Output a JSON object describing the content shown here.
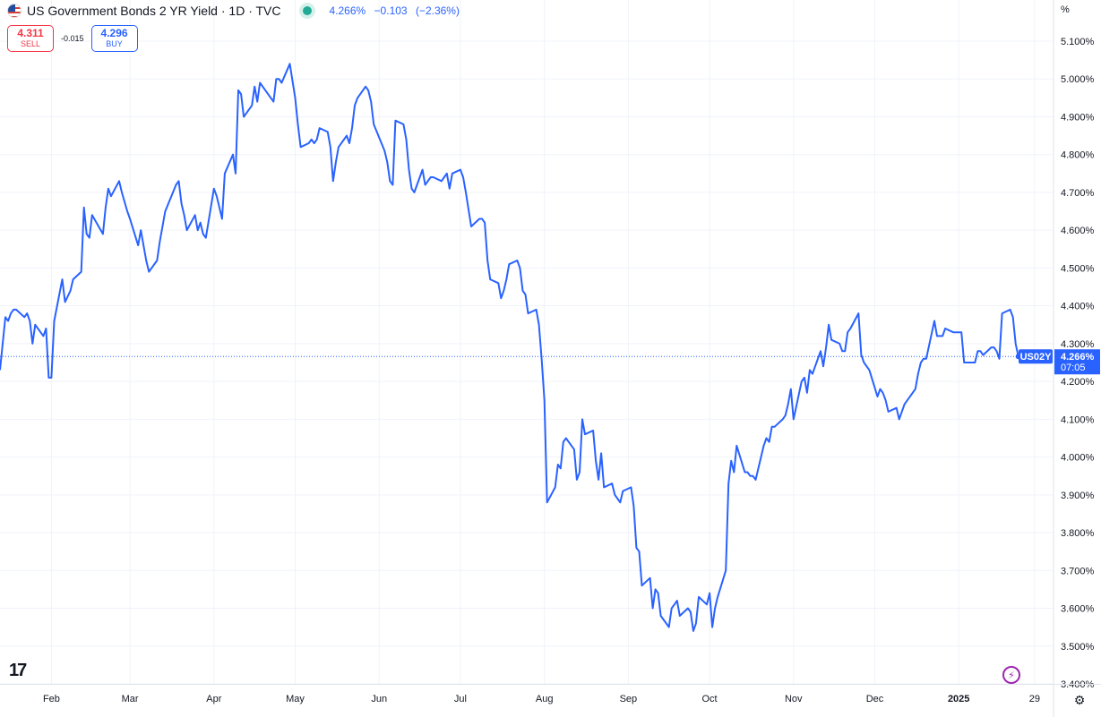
{
  "header": {
    "title": "US Government Bonds 2 YR Yield · 1D · TVC",
    "last": "4.266%",
    "change": "−0.103",
    "change_pct": "(−2.36%)"
  },
  "trade": {
    "sell_price": "4.311",
    "sell_label": "SELL",
    "spread": "-0.015",
    "buy_price": "4.296",
    "buy_label": "BUY"
  },
  "axis_unit": "%",
  "colors": {
    "line": "#2962ff",
    "grid": "#f0f3fa",
    "axis_text": "#131722",
    "badge_bg": "#2962ff",
    "sell": "#f23645"
  },
  "icons": [
    "us-flag-icon",
    "status-dot-icon",
    "tradingview-logo-icon",
    "flash-icon",
    "settings-icon"
  ],
  "chart_data": {
    "type": "line",
    "symbol": "US02Y",
    "badge_value": "4.266%",
    "badge_time": "07:05",
    "ylim": [
      3.4,
      5.1
    ],
    "y_ticks": [
      "3.400%",
      "3.500%",
      "3.600%",
      "3.700%",
      "3.800%",
      "3.900%",
      "4.000%",
      "4.100%",
      "4.200%",
      "4.300%",
      "4.400%",
      "4.500%",
      "4.600%",
      "4.700%",
      "4.800%",
      "4.900%",
      "5.000%",
      "5.100%"
    ],
    "y_tick_values": [
      3.4,
      3.5,
      3.6,
      3.7,
      3.8,
      3.9,
      4.0,
      4.1,
      4.2,
      4.3,
      4.4,
      4.5,
      4.6,
      4.7,
      4.8,
      4.9,
      5.0,
      5.1
    ],
    "x_ticks": [
      {
        "label": "Feb",
        "date": "2024-02-01"
      },
      {
        "label": "Mar",
        "date": "2024-03-01"
      },
      {
        "label": "Apr",
        "date": "2024-04-01"
      },
      {
        "label": "May",
        "date": "2024-05-01"
      },
      {
        "label": "Jun",
        "date": "2024-06-01"
      },
      {
        "label": "Jul",
        "date": "2024-07-01"
      },
      {
        "label": "Aug",
        "date": "2024-08-01"
      },
      {
        "label": "Sep",
        "date": "2024-09-01"
      },
      {
        "label": "Oct",
        "date": "2024-10-01"
      },
      {
        "label": "Nov",
        "date": "2024-11-01"
      },
      {
        "label": "Dec",
        "date": "2024-12-01"
      },
      {
        "label": "2025",
        "date": "2025-01-01"
      },
      {
        "label": "29",
        "date": "2025-01-29"
      }
    ],
    "x_range": [
      "2024-01-13",
      "2025-02-05"
    ],
    "last_value": 4.266,
    "series": [
      {
        "points": [
          [
            "2024-01-13",
            4.23
          ],
          [
            "2024-01-15",
            4.37
          ],
          [
            "2024-01-16",
            4.36
          ],
          [
            "2024-01-17",
            4.38
          ],
          [
            "2024-01-18",
            4.39
          ],
          [
            "2024-01-19",
            4.39
          ],
          [
            "2024-01-22",
            4.37
          ],
          [
            "2024-01-23",
            4.38
          ],
          [
            "2024-01-24",
            4.36
          ],
          [
            "2024-01-25",
            4.3
          ],
          [
            "2024-01-26",
            4.35
          ],
          [
            "2024-01-29",
            4.32
          ],
          [
            "2024-01-30",
            4.34
          ],
          [
            "2024-01-31",
            4.21
          ],
          [
            "2024-02-01",
            4.21
          ],
          [
            "2024-02-02",
            4.36
          ],
          [
            "2024-02-05",
            4.47
          ],
          [
            "2024-02-06",
            4.41
          ],
          [
            "2024-02-08",
            4.44
          ],
          [
            "2024-02-09",
            4.47
          ],
          [
            "2024-02-12",
            4.49
          ],
          [
            "2024-02-13",
            4.66
          ],
          [
            "2024-02-14",
            4.59
          ],
          [
            "2024-02-15",
            4.58
          ],
          [
            "2024-02-16",
            4.64
          ],
          [
            "2024-02-20",
            4.59
          ],
          [
            "2024-02-21",
            4.66
          ],
          [
            "2024-02-22",
            4.71
          ],
          [
            "2024-02-23",
            4.69
          ],
          [
            "2024-02-26",
            4.73
          ],
          [
            "2024-02-27",
            4.7
          ],
          [
            "2024-02-29",
            4.65
          ],
          [
            "2024-03-01",
            4.63
          ],
          [
            "2024-03-04",
            4.56
          ],
          [
            "2024-03-05",
            4.6
          ],
          [
            "2024-03-06",
            4.56
          ],
          [
            "2024-03-07",
            4.52
          ],
          [
            "2024-03-08",
            4.49
          ],
          [
            "2024-03-11",
            4.52
          ],
          [
            "2024-03-12",
            4.57
          ],
          [
            "2024-03-13",
            4.61
          ],
          [
            "2024-03-14",
            4.65
          ],
          [
            "2024-03-18",
            4.72
          ],
          [
            "2024-03-19",
            4.73
          ],
          [
            "2024-03-20",
            4.67
          ],
          [
            "2024-03-21",
            4.64
          ],
          [
            "2024-03-22",
            4.6
          ],
          [
            "2024-03-25",
            4.64
          ],
          [
            "2024-03-26",
            4.6
          ],
          [
            "2024-03-27",
            4.62
          ],
          [
            "2024-03-28",
            4.59
          ],
          [
            "2024-03-29",
            4.58
          ],
          [
            "2024-04-01",
            4.71
          ],
          [
            "2024-04-02",
            4.69
          ],
          [
            "2024-04-03",
            4.66
          ],
          [
            "2024-04-04",
            4.63
          ],
          [
            "2024-04-05",
            4.75
          ],
          [
            "2024-04-08",
            4.8
          ],
          [
            "2024-04-09",
            4.75
          ],
          [
            "2024-04-10",
            4.97
          ],
          [
            "2024-04-11",
            4.96
          ],
          [
            "2024-04-12",
            4.9
          ],
          [
            "2024-04-15",
            4.93
          ],
          [
            "2024-04-16",
            4.98
          ],
          [
            "2024-04-17",
            4.94
          ],
          [
            "2024-04-18",
            4.99
          ],
          [
            "2024-04-19",
            4.98
          ],
          [
            "2024-04-22",
            4.95
          ],
          [
            "2024-04-23",
            4.94
          ],
          [
            "2024-04-24",
            5.0
          ],
          [
            "2024-04-25",
            5.0
          ],
          [
            "2024-04-26",
            4.99
          ],
          [
            "2024-04-29",
            5.04
          ],
          [
            "2024-05-01",
            4.95
          ],
          [
            "2024-05-02",
            4.88
          ],
          [
            "2024-05-03",
            4.82
          ],
          [
            "2024-05-06",
            4.83
          ],
          [
            "2024-05-07",
            4.84
          ],
          [
            "2024-05-08",
            4.83
          ],
          [
            "2024-05-09",
            4.84
          ],
          [
            "2024-05-10",
            4.87
          ],
          [
            "2024-05-13",
            4.86
          ],
          [
            "2024-05-14",
            4.82
          ],
          [
            "2024-05-15",
            4.73
          ],
          [
            "2024-05-16",
            4.78
          ],
          [
            "2024-05-17",
            4.82
          ],
          [
            "2024-05-20",
            4.85
          ],
          [
            "2024-05-21",
            4.83
          ],
          [
            "2024-05-22",
            4.87
          ],
          [
            "2024-05-23",
            4.93
          ],
          [
            "2024-05-24",
            4.95
          ],
          [
            "2024-05-27",
            4.98
          ],
          [
            "2024-05-28",
            4.97
          ],
          [
            "2024-05-29",
            4.94
          ],
          [
            "2024-05-30",
            4.88
          ],
          [
            "2024-06-03",
            4.81
          ],
          [
            "2024-06-04",
            4.78
          ],
          [
            "2024-06-05",
            4.73
          ],
          [
            "2024-06-06",
            4.72
          ],
          [
            "2024-06-07",
            4.89
          ],
          [
            "2024-06-10",
            4.88
          ],
          [
            "2024-06-11",
            4.84
          ],
          [
            "2024-06-12",
            4.76
          ],
          [
            "2024-06-13",
            4.71
          ],
          [
            "2024-06-14",
            4.7
          ],
          [
            "2024-06-17",
            4.76
          ],
          [
            "2024-06-18",
            4.72
          ],
          [
            "2024-06-20",
            4.74
          ],
          [
            "2024-06-21",
            4.74
          ],
          [
            "2024-06-24",
            4.73
          ],
          [
            "2024-06-25",
            4.74
          ],
          [
            "2024-06-26",
            4.75
          ],
          [
            "2024-06-27",
            4.71
          ],
          [
            "2024-06-28",
            4.75
          ],
          [
            "2024-07-01",
            4.76
          ],
          [
            "2024-07-02",
            4.74
          ],
          [
            "2024-07-03",
            4.7
          ],
          [
            "2024-07-05",
            4.61
          ],
          [
            "2024-07-08",
            4.63
          ],
          [
            "2024-07-09",
            4.63
          ],
          [
            "2024-07-10",
            4.62
          ],
          [
            "2024-07-11",
            4.52
          ],
          [
            "2024-07-12",
            4.47
          ],
          [
            "2024-07-15",
            4.46
          ],
          [
            "2024-07-16",
            4.42
          ],
          [
            "2024-07-17",
            4.44
          ],
          [
            "2024-07-18",
            4.47
          ],
          [
            "2024-07-19",
            4.51
          ],
          [
            "2024-07-22",
            4.52
          ],
          [
            "2024-07-23",
            4.5
          ],
          [
            "2024-07-24",
            4.44
          ],
          [
            "2024-07-25",
            4.43
          ],
          [
            "2024-07-26",
            4.38
          ],
          [
            "2024-07-29",
            4.39
          ],
          [
            "2024-07-30",
            4.35
          ],
          [
            "2024-07-31",
            4.26
          ],
          [
            "2024-08-01",
            4.15
          ],
          [
            "2024-08-02",
            3.88
          ],
          [
            "2024-08-05",
            3.92
          ],
          [
            "2024-08-06",
            3.98
          ],
          [
            "2024-08-07",
            3.97
          ],
          [
            "2024-08-08",
            4.04
          ],
          [
            "2024-08-09",
            4.05
          ],
          [
            "2024-08-12",
            4.02
          ],
          [
            "2024-08-13",
            3.94
          ],
          [
            "2024-08-14",
            3.96
          ],
          [
            "2024-08-15",
            4.1
          ],
          [
            "2024-08-16",
            4.06
          ],
          [
            "2024-08-19",
            4.07
          ],
          [
            "2024-08-20",
            3.99
          ],
          [
            "2024-08-21",
            3.94
          ],
          [
            "2024-08-22",
            4.01
          ],
          [
            "2024-08-23",
            3.92
          ],
          [
            "2024-08-26",
            3.93
          ],
          [
            "2024-08-27",
            3.9
          ],
          [
            "2024-08-28",
            3.89
          ],
          [
            "2024-08-29",
            3.88
          ],
          [
            "2024-08-30",
            3.91
          ],
          [
            "2024-09-02",
            3.92
          ],
          [
            "2024-09-03",
            3.87
          ],
          [
            "2024-09-04",
            3.76
          ],
          [
            "2024-09-05",
            3.75
          ],
          [
            "2024-09-06",
            3.66
          ],
          [
            "2024-09-09",
            3.68
          ],
          [
            "2024-09-10",
            3.6
          ],
          [
            "2024-09-11",
            3.65
          ],
          [
            "2024-09-12",
            3.64
          ],
          [
            "2024-09-13",
            3.58
          ],
          [
            "2024-09-16",
            3.55
          ],
          [
            "2024-09-17",
            3.6
          ],
          [
            "2024-09-18",
            3.61
          ],
          [
            "2024-09-19",
            3.62
          ],
          [
            "2024-09-20",
            3.58
          ],
          [
            "2024-09-23",
            3.6
          ],
          [
            "2024-09-24",
            3.59
          ],
          [
            "2024-09-25",
            3.54
          ],
          [
            "2024-09-26",
            3.56
          ],
          [
            "2024-09-27",
            3.63
          ],
          [
            "2024-09-30",
            3.61
          ],
          [
            "2024-10-01",
            3.64
          ],
          [
            "2024-10-02",
            3.55
          ],
          [
            "2024-10-03",
            3.6
          ],
          [
            "2024-10-04",
            3.63
          ],
          [
            "2024-10-07",
            3.7
          ],
          [
            "2024-10-08",
            3.93
          ],
          [
            "2024-10-09",
            3.99
          ],
          [
            "2024-10-10",
            3.96
          ],
          [
            "2024-10-11",
            4.03
          ],
          [
            "2024-10-14",
            3.96
          ],
          [
            "2024-10-15",
            3.96
          ],
          [
            "2024-10-16",
            3.95
          ],
          [
            "2024-10-17",
            3.95
          ],
          [
            "2024-10-18",
            3.94
          ],
          [
            "2024-10-21",
            4.03
          ],
          [
            "2024-10-22",
            4.05
          ],
          [
            "2024-10-23",
            4.04
          ],
          [
            "2024-10-24",
            4.08
          ],
          [
            "2024-10-25",
            4.08
          ],
          [
            "2024-10-28",
            4.1
          ],
          [
            "2024-10-29",
            4.11
          ],
          [
            "2024-10-30",
            4.14
          ],
          [
            "2024-10-31",
            4.18
          ],
          [
            "2024-11-01",
            4.1
          ],
          [
            "2024-11-04",
            4.2
          ],
          [
            "2024-11-05",
            4.21
          ],
          [
            "2024-11-06",
            4.17
          ],
          [
            "2024-11-07",
            4.23
          ],
          [
            "2024-11-08",
            4.22
          ],
          [
            "2024-11-11",
            4.28
          ],
          [
            "2024-11-12",
            4.24
          ],
          [
            "2024-11-13",
            4.29
          ],
          [
            "2024-11-14",
            4.35
          ],
          [
            "2024-11-15",
            4.31
          ],
          [
            "2024-11-18",
            4.3
          ],
          [
            "2024-11-19",
            4.28
          ],
          [
            "2024-11-20",
            4.28
          ],
          [
            "2024-11-21",
            4.33
          ],
          [
            "2024-11-22",
            4.34
          ],
          [
            "2024-11-25",
            4.38
          ],
          [
            "2024-11-26",
            4.27
          ],
          [
            "2024-11-27",
            4.25
          ],
          [
            "2024-11-29",
            4.23
          ],
          [
            "2024-12-02",
            4.16
          ],
          [
            "2024-12-03",
            4.18
          ],
          [
            "2024-12-04",
            4.17
          ],
          [
            "2024-12-05",
            4.15
          ],
          [
            "2024-12-06",
            4.12
          ],
          [
            "2024-12-09",
            4.13
          ],
          [
            "2024-12-10",
            4.1
          ],
          [
            "2024-12-11",
            4.12
          ],
          [
            "2024-12-12",
            4.14
          ],
          [
            "2024-12-13",
            4.15
          ],
          [
            "2024-12-16",
            4.18
          ],
          [
            "2024-12-17",
            4.22
          ],
          [
            "2024-12-18",
            4.25
          ],
          [
            "2024-12-19",
            4.26
          ],
          [
            "2024-12-20",
            4.26
          ],
          [
            "2024-12-23",
            4.36
          ],
          [
            "2024-12-24",
            4.32
          ],
          [
            "2024-12-26",
            4.32
          ],
          [
            "2024-12-27",
            4.34
          ],
          [
            "2024-12-30",
            4.33
          ],
          [
            "2024-12-31",
            4.33
          ],
          [
            "2025-01-02",
            4.33
          ],
          [
            "2025-01-03",
            4.25
          ],
          [
            "2025-01-06",
            4.25
          ],
          [
            "2025-01-07",
            4.25
          ],
          [
            "2025-01-08",
            4.28
          ],
          [
            "2025-01-09",
            4.28
          ],
          [
            "2025-01-10",
            4.27
          ],
          [
            "2025-01-13",
            4.29
          ],
          [
            "2025-01-14",
            4.29
          ],
          [
            "2025-01-15",
            4.28
          ],
          [
            "2025-01-16",
            4.26
          ],
          [
            "2025-01-17",
            4.38
          ],
          [
            "2025-01-20",
            4.39
          ],
          [
            "2025-01-21",
            4.37
          ],
          [
            "2025-01-22",
            4.3
          ],
          [
            "2025-01-23",
            4.266
          ]
        ]
      }
    ]
  }
}
